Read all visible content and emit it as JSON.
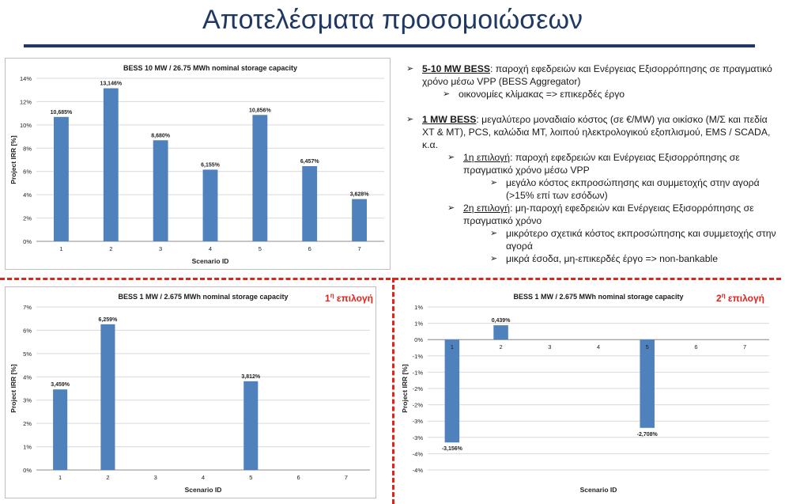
{
  "page": {
    "title": "Αποτελέσματα προσομοιώσεων"
  },
  "colors": {
    "title": "#1f3864",
    "bar": "#4f81bd",
    "accent_red": "#e2231a",
    "grid": "#d9d9d9"
  },
  "option_labels": {
    "first": "1η επιλογή",
    "second": "2η επιλογή"
  },
  "notes": {
    "b1_head": "5-10 MW BESS",
    "b1_text": ": παροχή εφεδρειών και Ενέργειας Εξισορρόπησης σε πραγματικό χρόνο μέσω VPP (BESS Aggregator)",
    "b1_sub": "οικονομίες κλίμακας => επικερδές έργο",
    "b2_head": "1 MW BESS",
    "b2_text": ": μεγαλύτερο μοναδιαίο κόστος (σε €/MW) για οικίσκο (Μ/Σ και πεδία ΧΤ & ΜΤ), PCS, καλώδια ΜΤ, λοιπού ηλεκτρολογικού εξοπλισμού, EMS / SCADA, κ.α.",
    "opt1_head": "1η επιλογή",
    "opt1_text": ": παροχή εφεδρειών και Ενέργειας Εξισορρόπησης σε πραγματικό χρόνο μέσω VPP",
    "opt1_sub": "μεγάλο κόστος εκπροσώπησης και συμμετοχής στην αγορά (>15% επί των εσόδων)",
    "opt2_head": "2η επιλογή",
    "opt2_text": ": μη-παροχή εφεδρειών και Ενέργειας Εξισορρόπησης σε πραγματικό χρόνο",
    "opt2_sub1": "μικρότερο σχετικά κόστος εκπροσώπησης και συμμετοχής στην αγορά",
    "opt2_sub2": "μικρά έσοδα, μη-επικερδές έργο => non-bankable"
  },
  "chart_data": [
    {
      "type": "bar",
      "title": "BESS 10 MW / 26.75 MWh nominal storage capacity",
      "xlabel": "Scenario ID",
      "ylabel": "Project IRR [%]",
      "categories": [
        "1",
        "2",
        "3",
        "4",
        "5",
        "6",
        "7"
      ],
      "values": [
        10.685,
        13.146,
        8.68,
        6.155,
        10.856,
        6.457,
        3.628
      ],
      "data_labels": [
        "10,685%",
        "13,146%",
        "8,680%",
        "6,155%",
        "10,856%",
        "6,457%",
        "3,628%"
      ],
      "ylim": [
        0,
        14
      ],
      "yticks": [
        0,
        2,
        4,
        6,
        8,
        10,
        12,
        14
      ],
      "ytick_labels": [
        "0%",
        "2%",
        "4%",
        "6%",
        "8%",
        "10%",
        "12%",
        "14%"
      ],
      "grid": true,
      "legend": "none"
    },
    {
      "type": "bar",
      "title": "BESS 1 MW / 2.675 MWh nominal storage capacity",
      "xlabel": "Scenario ID",
      "ylabel": "Project IRR [%]",
      "categories": [
        "1",
        "2",
        "3",
        "4",
        "5",
        "6",
        "7"
      ],
      "values": [
        3.459,
        6.259,
        null,
        null,
        3.812,
        null,
        null
      ],
      "data_labels": [
        "3,459%",
        "6,259%",
        "",
        "",
        "3,812%",
        "",
        ""
      ],
      "ylim": [
        0,
        7
      ],
      "yticks": [
        0,
        1,
        2,
        3,
        4,
        5,
        6,
        7
      ],
      "ytick_labels": [
        "0%",
        "1%",
        "2%",
        "3%",
        "4%",
        "5%",
        "6%",
        "7%"
      ],
      "grid": true,
      "legend": "none"
    },
    {
      "type": "bar",
      "title": "BESS 1 MW / 2.675 MWh nominal storage capacity",
      "xlabel": "Scenario ID",
      "ylabel": "Project IRR [%]",
      "categories": [
        "1",
        "2",
        "3",
        "4",
        "5",
        "6",
        "7"
      ],
      "values": [
        -3.156,
        0.439,
        null,
        null,
        -2.708,
        null,
        null
      ],
      "data_labels": [
        "-3,156%",
        "0,439%",
        "",
        "",
        "-2,708%",
        "",
        ""
      ],
      "ylim": [
        -4,
        1
      ],
      "yticks": [
        1,
        0.5,
        0,
        -0.5,
        -1,
        -1.5,
        -2,
        -2.5,
        -3,
        -3.5,
        -4
      ],
      "ytick_labels": [
        "1%",
        "1%",
        "0%",
        "-1%",
        "-1%",
        "-2%",
        "-2%",
        "-3%",
        "-3%",
        "-4%",
        "-4%"
      ],
      "grid": true,
      "legend": "none"
    }
  ]
}
